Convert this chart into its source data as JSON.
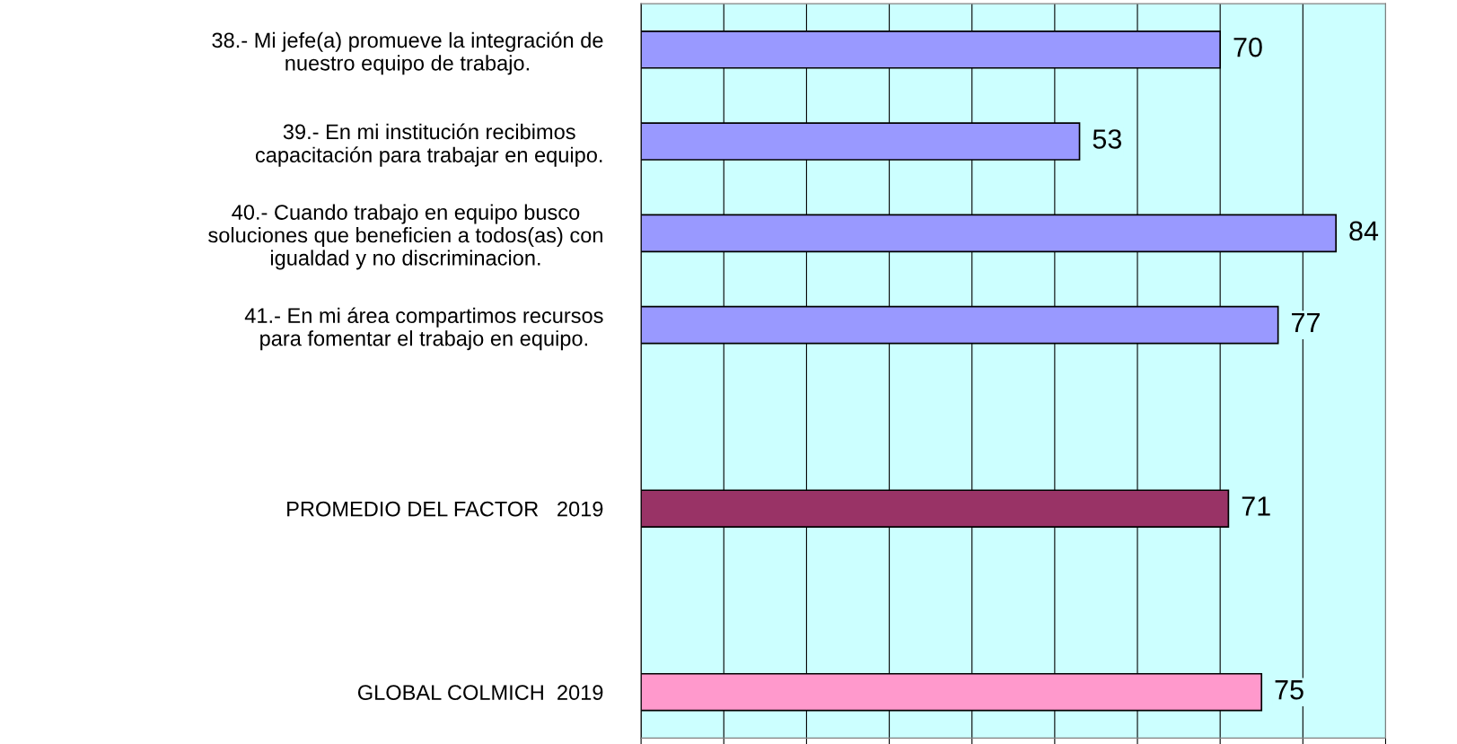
{
  "chart_data": {
    "type": "bar",
    "orientation": "horizontal",
    "categories": [
      "38.- Mi jefe(a) promueve la integración de\nnuestro equipo de trabajo.",
      "39.- En mi institución recibimos\ncapacitación para trabajar en equipo.",
      "40.- Cuando trabajo en equipo busco\nsoluciones que beneficien a todos(as) con\nigualdad y no discriminacion.",
      "41.- En mi área compartimos recursos\npara fomentar el trabajo en equipo.",
      null,
      "PROMEDIO DEL FACTOR   2019",
      null,
      "GLOBAL COLMICH  2019"
    ],
    "values": [
      70,
      53,
      84,
      77,
      null,
      71,
      null,
      75
    ],
    "colors": [
      "#9999ff",
      "#9999ff",
      "#9999ff",
      "#9999ff",
      "#9999ff",
      "#993366",
      "#9999ff",
      "#ff99cc"
    ],
    "xlim": [
      0,
      90
    ],
    "xticks": [
      {
        "value": 0,
        "label": null
      },
      {
        "value": 10,
        "label": null
      },
      {
        "value": 20,
        "label": null
      },
      {
        "value": 30,
        "label": null
      },
      {
        "value": 40,
        "label": null
      },
      {
        "value": 50,
        "label": null
      },
      {
        "value": 60,
        "label": null
      },
      {
        "value": 70,
        "label": null
      },
      {
        "value": 80,
        "label": null
      },
      {
        "value": 90,
        "label": null
      }
    ],
    "tick_labels": "y",
    "grid": "x",
    "data_labels": true
  }
}
